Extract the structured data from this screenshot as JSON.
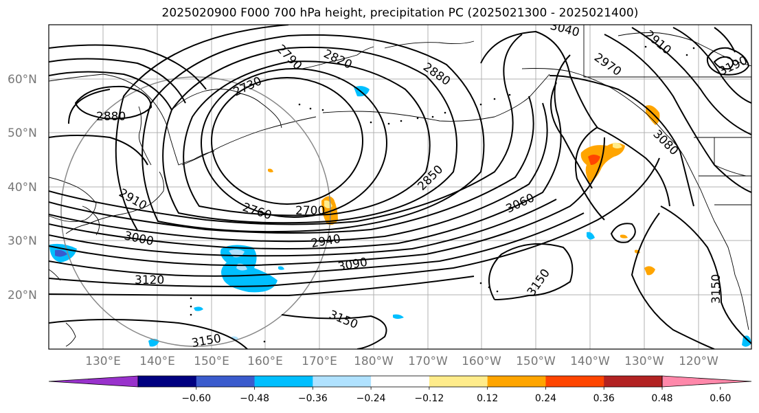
{
  "title": "2025020900 F000 700 hPa height, precipitation PC (2025021300 - 2025021400)",
  "lat_labels": [
    "60°N",
    "50°N",
    "40°N",
    "30°N",
    "20°N"
  ],
  "lon_labels": [
    "130°E",
    "140°E",
    "150°E",
    "160°E",
    "170°E",
    "180°W",
    "170°W",
    "160°W",
    "150°W",
    "140°W",
    "130°W",
    "120°W"
  ],
  "contour_labels": [
    "2790",
    "2820",
    "2880",
    "2910",
    "2970",
    "3080",
    "2880",
    "2730",
    "2850",
    "3060",
    "2910",
    "3000",
    "2760",
    "2700",
    "2940",
    "3090",
    "3120",
    "3150",
    "3150",
    "3150",
    "3150",
    "3040",
    "3190"
  ],
  "colorbar": {
    "colors": [
      "#9932cc",
      "#000080",
      "#3a5bcd",
      "#00bfff",
      "#b0e2ff",
      "#ffffff",
      "#ffec8b",
      "#ffa500",
      "#ff4500",
      "#b22222",
      "#ff88aa"
    ],
    "tick_labels": [
      "−0.60",
      "−0.48",
      "−0.36",
      "−0.24",
      "−0.12",
      "0.12",
      "0.24",
      "0.36",
      "0.48",
      "0.60"
    ]
  },
  "colors": {
    "contour": "#000000",
    "grid": "#aaaaaa",
    "coast": "#000000",
    "circle": "#777777"
  }
}
